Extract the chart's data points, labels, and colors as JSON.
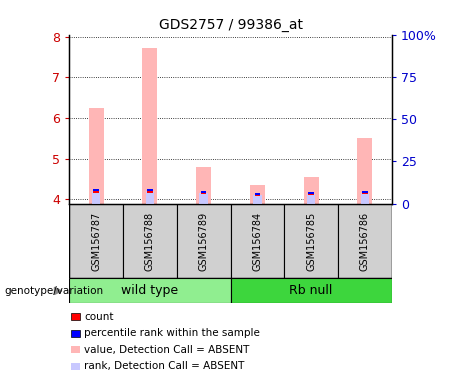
{
  "title": "GDS2757 / 99386_at",
  "samples": [
    "GSM156787",
    "GSM156788",
    "GSM156789",
    "GSM156784",
    "GSM156785",
    "GSM156786"
  ],
  "group_labels": [
    "wild type",
    "Rb null"
  ],
  "group_colors": [
    "#90ee90",
    "#3dd63d"
  ],
  "ylim_left": [
    3.9,
    8.05
  ],
  "ylim_right": [
    0,
    100
  ],
  "yticks_left": [
    4,
    5,
    6,
    7,
    8
  ],
  "yticks_right": [
    0,
    25,
    50,
    75,
    100
  ],
  "yticklabels_right": [
    "0",
    "25",
    "50",
    "75",
    "100%"
  ],
  "value_absent": [
    6.25,
    7.72,
    4.8,
    4.35,
    4.55,
    5.5
  ],
  "rank_absent": [
    4.2,
    4.2,
    4.17,
    4.11,
    4.13,
    4.17
  ],
  "count_val": [
    4.16,
    4.16,
    4.14,
    4.09,
    4.1,
    4.14
  ],
  "percentile_val": [
    4.2,
    4.2,
    4.17,
    4.11,
    4.13,
    4.17
  ],
  "value_absent_color": "#ffb6b6",
  "rank_absent_color": "#c8c8ff",
  "count_color": "#ff0000",
  "percentile_color": "#0000ff",
  "legend_items": [
    {
      "label": "count",
      "color": "#ff0000"
    },
    {
      "label": "percentile rank within the sample",
      "color": "#0000ff"
    },
    {
      "label": "value, Detection Call = ABSENT",
      "color": "#ffb6b6"
    },
    {
      "label": "rank, Detection Call = ABSENT",
      "color": "#c8c8ff"
    }
  ],
  "left_axis_color": "#cc0000",
  "right_axis_color": "#0000cc",
  "sample_box_color": "#d0d0d0",
  "genotype_label": "genotype/variation",
  "arrow_color": "#888888",
  "fig_width": 4.61,
  "fig_height": 3.84,
  "dpi": 100
}
